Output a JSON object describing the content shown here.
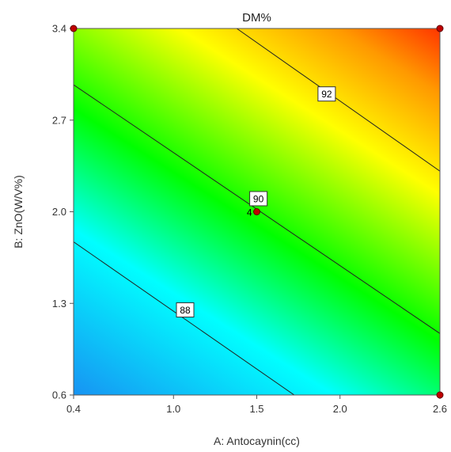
{
  "chart_data": {
    "type": "contour",
    "title": "DM%",
    "xlabel": "A: Antocaynin(cc)",
    "ylabel": "B: ZnO(W/V%)",
    "xlim": [
      0.4,
      2.6
    ],
    "ylim": [
      0.6,
      3.4
    ],
    "x_ticks": [
      0.4,
      1.0,
      1.5,
      2.0,
      2.6
    ],
    "x_tick_labels": [
      "0.4",
      "1.0",
      "1.5",
      "2.0",
      "2.6"
    ],
    "y_ticks": [
      0.6,
      1.3,
      2.0,
      2.7,
      3.4
    ],
    "y_tick_labels": [
      "0.6",
      "1.3",
      "2.0",
      "2.7",
      "3.4"
    ],
    "color_range": [
      85.4,
      94.4
    ],
    "colors": {
      "low": "#1c7cf0",
      "cyan": "#00ffff",
      "green": "#00ff00",
      "yellow": "#ffff00",
      "orange": "#ff9900",
      "high": "#ff0000"
    },
    "contours": [
      {
        "level": 88,
        "label": "88",
        "x": [
          0.4,
          1.725
        ],
        "y": [
          1.77,
          0.6
        ],
        "label_at": [
          1.07,
          1.25
        ]
      },
      {
        "level": 90,
        "label": "90",
        "x": [
          0.4,
          2.6
        ],
        "y": [
          2.97,
          1.07
        ],
        "label_at": [
          1.51,
          2.1
        ]
      },
      {
        "level": 92,
        "label": "92",
        "x": [
          1.38,
          2.6
        ],
        "y": [
          3.4,
          2.31
        ],
        "label_at": [
          1.92,
          2.9
        ]
      }
    ],
    "design_points": [
      {
        "x": 0.4,
        "y": 3.4
      },
      {
        "x": 2.6,
        "y": 3.4
      },
      {
        "x": 1.5,
        "y": 2.0,
        "label": "4"
      },
      {
        "x": 2.6,
        "y": 0.6
      }
    ]
  }
}
